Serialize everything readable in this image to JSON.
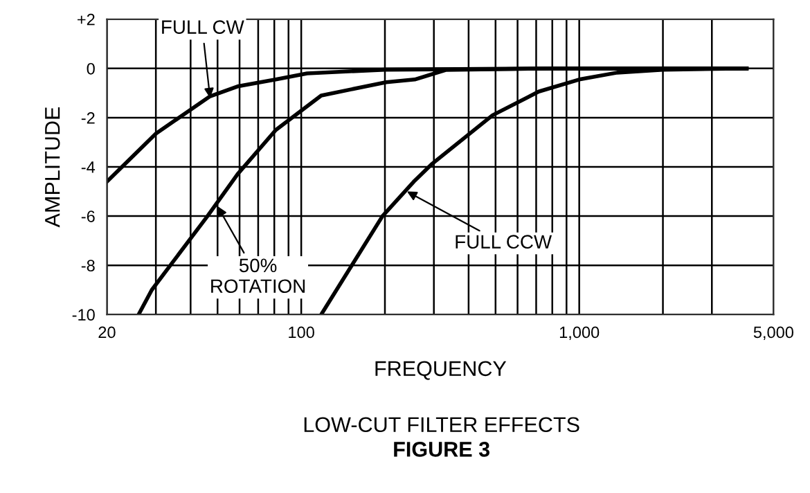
{
  "chart_data": {
    "type": "line",
    "title": "LOW-CUT FILTER EFFECTS",
    "subtitle": "FIGURE 3",
    "xlabel": "FREQUENCY",
    "ylabel": "AMPLITUDE",
    "log": "x",
    "grid": true,
    "marker": "none",
    "line_style": "solid",
    "xlim": [
      20,
      5000
    ],
    "xticks": [
      20,
      {
        "value": 30,
        "label": null
      },
      {
        "value": 40,
        "label": null
      },
      {
        "value": 50,
        "label": null
      },
      {
        "value": 60,
        "label": null
      },
      {
        "value": 70,
        "label": null
      },
      {
        "value": 80,
        "label": null
      },
      {
        "value": 90,
        "label": null
      },
      100,
      {
        "value": 200,
        "label": null
      },
      {
        "value": 300,
        "label": null
      },
      {
        "value": 400,
        "label": null
      },
      {
        "value": 500,
        "label": null
      },
      {
        "value": 600,
        "label": null
      },
      {
        "value": 700,
        "label": null
      },
      {
        "value": 800,
        "label": null
      },
      {
        "value": 900,
        "label": null
      },
      {
        "value": 1000,
        "label": "1,000"
      },
      {
        "value": 2000,
        "label": null
      },
      {
        "value": 3000,
        "label": null
      },
      {
        "value": 5000,
        "label": "5,000"
      }
    ],
    "ylim": [
      -10,
      2
    ],
    "yticks": [
      -10,
      -8,
      -6,
      -4,
      -2,
      0,
      {
        "value": 2,
        "label": "+2"
      }
    ],
    "series": [
      {
        "color": "#000000",
        "x": [
          20,
          30,
          47,
          59,
          81,
          105,
          200,
          800,
          4000
        ],
        "values": [
          -4.6,
          -2.65,
          -1.13,
          -0.73,
          -0.45,
          -0.2,
          -0.05,
          0,
          0
        ]
      },
      {
        "color": "#000000",
        "x": [
          26,
          29,
          46,
          59,
          81,
          118,
          202,
          256,
          331,
          800,
          4000
        ],
        "values": [
          -10,
          -9.0,
          -6.0,
          -4.3,
          -2.5,
          -1.1,
          -0.56,
          -0.45,
          -0.06,
          0,
          0
        ]
      },
      {
        "color": "#000000",
        "x": [
          118,
          196,
          254,
          294,
          488,
          715,
          1000,
          1370,
          2000,
          4000
        ],
        "values": [
          -10,
          -6.0,
          -4.6,
          -3.9,
          -1.9,
          -0.94,
          -0.45,
          -0.17,
          -0.05,
          0
        ]
      }
    ],
    "annotations": [
      {
        "text": "FULL CW",
        "x": 47,
        "y": -1.2
      },
      {
        "text": "50%\nROTATION",
        "x": 50,
        "y": -5.6
      },
      {
        "text": "FULL CCW",
        "x": 240,
        "y": -5.0
      }
    ]
  }
}
